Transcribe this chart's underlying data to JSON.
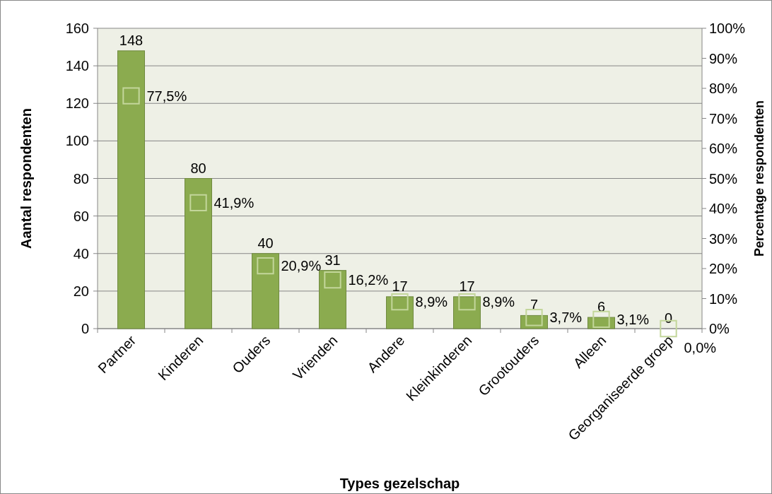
{
  "chart_data": {
    "type": "bar",
    "xlabel": "Types gezelschap",
    "ylabel": "Aantal respondenten",
    "y2label": "Percentage respondenten",
    "categories": [
      "Partner",
      "Kinderen",
      "Ouders",
      "Vrienden",
      "Andere",
      "Kleinkinderen",
      "Grootouders",
      "Alleen",
      "Georganiseerde groep"
    ],
    "series": [
      {
        "color": "#8bab4f",
        "values": [
          148,
          80,
          40,
          31,
          17,
          17,
          7,
          6,
          0
        ],
        "value_labels": [
          "148",
          "80",
          "40",
          "31",
          "17",
          "17",
          "7",
          "6",
          "0"
        ]
      },
      {
        "type": "scatter",
        "axis": "y2",
        "color": "#c3d69b",
        "marker": "square",
        "values": [
          77.5,
          41.9,
          20.9,
          16.2,
          8.9,
          8.9,
          3.7,
          3.1,
          0.0
        ],
        "value_labels": [
          "77,5%",
          "41,9%",
          "20,9%",
          "16,2%",
          "8,9%",
          "8,9%",
          "3,7%",
          "3,1%",
          "0,0%"
        ]
      }
    ],
    "ylim": [
      0,
      160
    ],
    "yticks": [
      0,
      20,
      40,
      60,
      80,
      100,
      120,
      140,
      160
    ],
    "y2lim": [
      0,
      100
    ],
    "y2ticks": [
      {
        "value": 0,
        "label": "0%"
      },
      {
        "value": 10,
        "label": "10%"
      },
      {
        "value": 20,
        "label": "20%"
      },
      {
        "value": 30,
        "label": "30%"
      },
      {
        "value": 40,
        "label": "40%"
      },
      {
        "value": 50,
        "label": "50%"
      },
      {
        "value": 60,
        "label": "60%"
      },
      {
        "value": 70,
        "label": "70%"
      },
      {
        "value": 80,
        "label": "80%"
      },
      {
        "value": 90,
        "label": "90%"
      },
      {
        "value": 100,
        "label": "100%"
      }
    ],
    "grid": "y"
  }
}
